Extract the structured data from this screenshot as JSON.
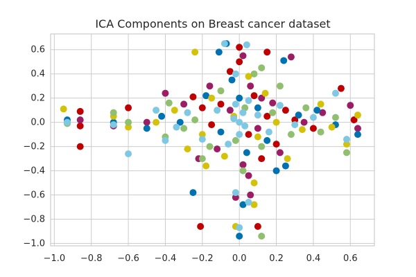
{
  "chart_data": {
    "type": "scatter",
    "title": "ICA Components on Breast cancer dataset",
    "xlabel": "",
    "ylabel": "",
    "xlim": [
      -1.02,
      0.73
    ],
    "ylim": [
      -1.02,
      0.73
    ],
    "x_ticks": [
      "−1.0",
      "−0.8",
      "−0.6",
      "−0.4",
      "−0.2",
      "0.0",
      "0.2",
      "0.4",
      "0.6"
    ],
    "y_ticks": [
      "−1.0",
      "−0.8",
      "−0.6",
      "−0.4",
      "−0.2",
      "0.0",
      "0.2",
      "0.4",
      "0.6"
    ],
    "grid": true,
    "legend": "none",
    "colors": [
      "#0072b2",
      "#009e73",
      "#d55e00",
      "#cc79a7",
      "#f0e442",
      "#56b4e9",
      "#c70039",
      "#9b1d64",
      "#8fbf6f",
      "#d4c20a",
      "#7ec8e3"
    ],
    "series": [
      {
        "color": "#c00000",
        "points": [
          [
            -0.93,
            0.0
          ],
          [
            -0.86,
            0.09
          ],
          [
            -0.86,
            -0.03
          ],
          [
            -0.86,
            -0.2
          ],
          [
            -0.6,
            0.12
          ],
          [
            -0.25,
            0.21
          ],
          [
            -0.2,
            0.12
          ],
          [
            -0.15,
            -0.02
          ],
          [
            -0.1,
            0.15
          ],
          [
            -0.05,
            0.42
          ],
          [
            0.0,
            0.5
          ],
          [
            0.05,
            -0.1
          ],
          [
            0.08,
            0.22
          ],
          [
            0.12,
            -0.3
          ],
          [
            0.15,
            0.05
          ],
          [
            0.2,
            -0.18
          ],
          [
            0.25,
            0.1
          ],
          [
            0.3,
            0.02
          ],
          [
            0.4,
            -0.05
          ],
          [
            0.55,
            0.28
          ],
          [
            0.62,
            0.02
          ],
          [
            0.15,
            0.58
          ],
          [
            -0.21,
            -0.86
          ],
          [
            0.1,
            -0.86
          ],
          [
            0.0,
            0.62
          ]
        ]
      },
      {
        "color": "#9b1d64",
        "points": [
          [
            -0.86,
            0.02
          ],
          [
            -0.68,
            -0.03
          ],
          [
            -0.5,
            0.0
          ],
          [
            -0.4,
            0.24
          ],
          [
            -0.3,
            0.15
          ],
          [
            -0.22,
            -0.3
          ],
          [
            -0.12,
            -0.22
          ],
          [
            -0.05,
            0.1
          ],
          [
            0.02,
            -0.35
          ],
          [
            0.06,
            0.3
          ],
          [
            0.1,
            -0.05
          ],
          [
            0.18,
            0.16
          ],
          [
            0.22,
            -0.25
          ],
          [
            0.28,
            0.54
          ],
          [
            0.35,
            0.0
          ],
          [
            0.45,
            0.08
          ],
          [
            0.6,
            0.14
          ],
          [
            0.64,
            -0.05
          ],
          [
            -0.02,
            -0.62
          ],
          [
            0.06,
            -0.6
          ],
          [
            0.02,
            0.55
          ],
          [
            0.05,
            -0.44
          ],
          [
            -0.16,
            0.3
          ],
          [
            0.12,
            0.2
          ]
        ]
      },
      {
        "color": "#0072b2",
        "points": [
          [
            -0.93,
            0.02
          ],
          [
            -0.68,
            0.0
          ],
          [
            -0.5,
            -0.05
          ],
          [
            -0.42,
            0.05
          ],
          [
            -0.32,
            0.0
          ],
          [
            -0.25,
            -0.58
          ],
          [
            -0.18,
            0.22
          ],
          [
            -0.1,
            -0.08
          ],
          [
            -0.04,
            0.35
          ],
          [
            0.0,
            0.2
          ],
          [
            0.04,
            -0.25
          ],
          [
            0.1,
            0.12
          ],
          [
            0.15,
            -0.15
          ],
          [
            0.2,
            -0.4
          ],
          [
            0.24,
            0.51
          ],
          [
            0.25,
            -0.36
          ],
          [
            0.32,
            0.06
          ],
          [
            0.42,
            0.1
          ],
          [
            0.52,
            -0.02
          ],
          [
            0.64,
            -0.1
          ],
          [
            -0.11,
            0.58
          ],
          [
            -0.07,
            0.65
          ],
          [
            0.02,
            -0.68
          ],
          [
            0.0,
            -0.94
          ]
        ]
      },
      {
        "color": "#d4c20a",
        "points": [
          [
            -0.95,
            0.11
          ],
          [
            -0.68,
            0.05
          ],
          [
            -0.6,
            -0.04
          ],
          [
            -0.45,
            0.0
          ],
          [
            -0.35,
            0.1
          ],
          [
            -0.28,
            -0.22
          ],
          [
            -0.2,
            -0.1
          ],
          [
            -0.15,
            0.2
          ],
          [
            -0.08,
            -0.28
          ],
          [
            -0.03,
            0.05
          ],
          [
            0.05,
            0.38
          ],
          [
            0.1,
            -0.12
          ],
          [
            0.14,
            0.24
          ],
          [
            0.2,
            0.0
          ],
          [
            0.26,
            -0.3
          ],
          [
            0.34,
            -0.06
          ],
          [
            0.44,
            0.15
          ],
          [
            0.5,
            -0.04
          ],
          [
            0.58,
            -0.18
          ],
          [
            0.64,
            0.06
          ],
          [
            -0.24,
            0.58
          ],
          [
            -0.18,
            -0.36
          ],
          [
            0.08,
            -0.5
          ],
          [
            0.08,
            -0.68
          ],
          [
            -0.02,
            -0.86
          ]
        ]
      },
      {
        "color": "#8fbf6f",
        "points": [
          [
            -0.93,
            -0.01
          ],
          [
            -0.68,
            0.08
          ],
          [
            -0.6,
            0.0
          ],
          [
            -0.4,
            -0.12
          ],
          [
            -0.38,
            0.16
          ],
          [
            -0.3,
            -0.05
          ],
          [
            -0.24,
            0.02
          ],
          [
            -0.16,
            -0.2
          ],
          [
            -0.1,
            0.26
          ],
          [
            -0.02,
            -0.15
          ],
          [
            0.03,
            0.12
          ],
          [
            0.08,
            0.4
          ],
          [
            0.12,
            -0.2
          ],
          [
            0.18,
            0.08
          ],
          [
            0.22,
            0.3
          ],
          [
            0.28,
            -0.1
          ],
          [
            0.36,
            0.12
          ],
          [
            0.44,
            -0.08
          ],
          [
            0.52,
            0.04
          ],
          [
            0.58,
            -0.25
          ],
          [
            0.12,
            -0.94
          ],
          [
            -0.2,
            -0.3
          ],
          [
            0.02,
            -0.4
          ],
          [
            0.12,
            0.45
          ]
        ]
      },
      {
        "color": "#7ec8e3",
        "points": [
          [
            -0.93,
            0.0
          ],
          [
            -0.68,
            -0.02
          ],
          [
            -0.6,
            -0.26
          ],
          [
            -0.45,
            0.1
          ],
          [
            -0.4,
            -0.15
          ],
          [
            -0.34,
            -0.04
          ],
          [
            -0.28,
            0.08
          ],
          [
            -0.2,
            -0.14
          ],
          [
            -0.12,
            0.1
          ],
          [
            -0.06,
            -0.18
          ],
          [
            0.0,
            0.0
          ],
          [
            0.02,
            0.08
          ],
          [
            -0.02,
            0.15
          ],
          [
            0.0,
            -0.1
          ],
          [
            0.03,
            -0.03
          ],
          [
            -0.03,
            0.03
          ],
          [
            0.05,
            0.18
          ],
          [
            0.1,
            0.06
          ],
          [
            0.16,
            -0.08
          ],
          [
            0.22,
            0.14
          ],
          [
            0.3,
            -0.02
          ],
          [
            0.4,
            0.04
          ],
          [
            0.52,
            0.24
          ],
          [
            0.58,
            -0.14
          ],
          [
            -0.08,
            0.65
          ],
          [
            0.04,
            0.64
          ],
          [
            -0.02,
            -0.58
          ],
          [
            0.05,
            -0.66
          ],
          [
            0.0,
            -0.87
          ],
          [
            -0.02,
            0.4
          ]
        ]
      }
    ]
  }
}
